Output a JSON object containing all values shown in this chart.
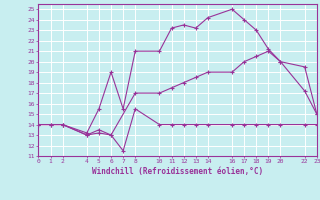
{
  "title": "",
  "xlabel": "Windchill (Refroidissement éolien,°C)",
  "background_color": "#c8eef0",
  "line_color": "#993399",
  "grid_color": "#aadddd",
  "xlim": [
    0,
    23
  ],
  "ylim": [
    11,
    25.5
  ],
  "xticks": [
    0,
    1,
    2,
    4,
    5,
    6,
    7,
    8,
    10,
    11,
    12,
    13,
    14,
    16,
    17,
    18,
    19,
    20,
    22,
    23
  ],
  "yticks": [
    11,
    12,
    13,
    14,
    15,
    16,
    17,
    18,
    19,
    20,
    21,
    22,
    23,
    24,
    25
  ],
  "line1_x": [
    0,
    1,
    2,
    4,
    5,
    6,
    7,
    8,
    10,
    11,
    12,
    13,
    14,
    16,
    17,
    18,
    19,
    20,
    22,
    23
  ],
  "line1_y": [
    14,
    14,
    14,
    13,
    13.2,
    13,
    11.5,
    15.5,
    14,
    14,
    14,
    14,
    14,
    14,
    14,
    14,
    14,
    14,
    14,
    14
  ],
  "line2_x": [
    0,
    1,
    2,
    4,
    5,
    6,
    7,
    8,
    10,
    11,
    12,
    13,
    14,
    16,
    17,
    18,
    19,
    20,
    22,
    23
  ],
  "line2_y": [
    14,
    14,
    14,
    13.2,
    15.5,
    19,
    15.5,
    21,
    21,
    23.2,
    23.5,
    23.2,
    24.2,
    25,
    24,
    23,
    21.2,
    20,
    17.2,
    15
  ],
  "line3_x": [
    0,
    2,
    4,
    5,
    6,
    8,
    10,
    11,
    12,
    13,
    14,
    16,
    17,
    18,
    19,
    20,
    22,
    23
  ],
  "line3_y": [
    14,
    14,
    13,
    13.5,
    13,
    17,
    17,
    17.5,
    18,
    18.5,
    19,
    19,
    20,
    20.5,
    21,
    20,
    19.5,
    15
  ]
}
